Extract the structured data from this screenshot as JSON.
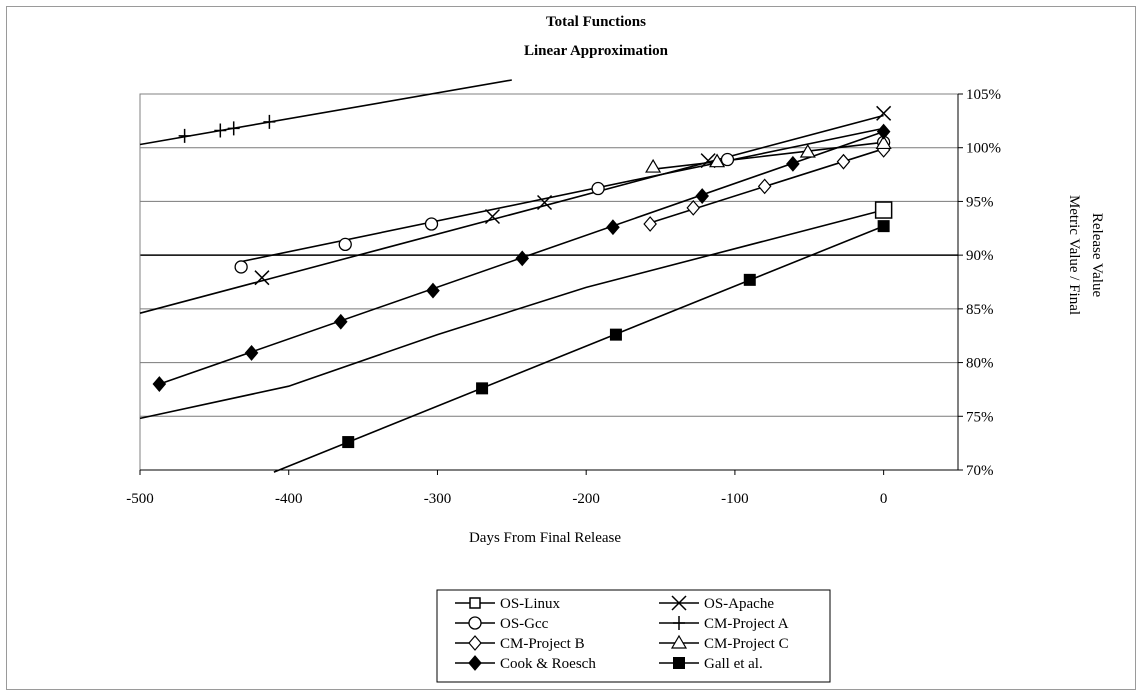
{
  "chart_data": {
    "type": "line",
    "title": "Total Functions",
    "subtitle": "Linear Approximation",
    "xlabel": "Days From Final Release",
    "ylabel_lines": [
      "Metric Value / Final",
      "Release Value"
    ],
    "xlim": [
      -500,
      50
    ],
    "ylim": [
      70,
      105
    ],
    "x_ticks": [
      -500,
      -400,
      -300,
      -200,
      -100,
      0
    ],
    "x_tick_labels": [
      "-500",
      "-400",
      "-300",
      "-200",
      "-100",
      "0"
    ],
    "y_ticks": [
      70,
      75,
      80,
      85,
      90,
      95,
      100,
      105
    ],
    "y_tick_labels": [
      "70%",
      "75%",
      "80%",
      "85%",
      "90%",
      "95%",
      "100%",
      "105%"
    ],
    "grid": "horizontal",
    "legend_position": "bottom-center",
    "series": [
      {
        "name": "OS-Linux",
        "marker": "square-open",
        "x": [
          0
        ],
        "y": [
          94.2
        ],
        "trend": [
          [
            -500,
            74.8
          ],
          [
            -400,
            77.8
          ],
          [
            -300,
            82.6
          ],
          [
            -200,
            87.0
          ],
          [
            -100,
            90.6
          ],
          [
            0,
            94.2
          ]
        ]
      },
      {
        "name": "OS-Apache",
        "marker": "x",
        "x": [
          -418,
          -263,
          -228,
          -118,
          0
        ],
        "y": [
          87.9,
          93.6,
          94.9,
          98.8,
          103.2
        ],
        "trend": [
          [
            -500,
            84.6
          ],
          [
            0,
            103.0
          ]
        ]
      },
      {
        "name": "OS-Gcc",
        "marker": "circle-open",
        "x": [
          -432,
          -362,
          -304,
          -192,
          -105,
          0
        ],
        "y": [
          88.9,
          91.0,
          92.9,
          96.2,
          98.9,
          100.5
        ],
        "trend": [
          [
            -432,
            89.4
          ],
          [
            0,
            101.8
          ]
        ]
      },
      {
        "name": "CM-Project A",
        "marker": "plus",
        "x": [
          -470,
          -446,
          -437,
          -413
        ],
        "y": [
          101.1,
          101.6,
          101.8,
          102.4
        ],
        "trend": [
          [
            -500,
            100.3
          ],
          [
            -250,
            106.3
          ]
        ]
      },
      {
        "name": "CM-Project B",
        "marker": "diamond-open",
        "x": [
          -157,
          -128,
          -80,
          -27,
          0
        ],
        "y": [
          92.9,
          94.4,
          96.4,
          98.7,
          99.8
        ],
        "trend": [
          [
            -157,
            93.0
          ],
          [
            0,
            99.9
          ]
        ]
      },
      {
        "name": "CM-Project C",
        "marker": "triangle-open",
        "x": [
          -155,
          -112,
          -51,
          0
        ],
        "y": [
          98.2,
          98.7,
          99.6,
          100.4
        ],
        "trend": [
          [
            -155,
            98.0
          ],
          [
            0,
            100.5
          ]
        ]
      },
      {
        "name": "Cook & Roesch",
        "marker": "diamond-filled",
        "x": [
          -487,
          -425,
          -365,
          -303,
          -243,
          -182,
          -122,
          -61,
          0
        ],
        "y": [
          78.0,
          80.9,
          83.8,
          86.7,
          89.7,
          92.6,
          95.5,
          98.5,
          101.5
        ],
        "trend": [
          [
            -487,
            78.0
          ],
          [
            0,
            101.5
          ]
        ]
      },
      {
        "name": "Gall et al.",
        "marker": "square-filled",
        "x": [
          -360,
          -270,
          -180,
          -90,
          0
        ],
        "y": [
          72.6,
          77.6,
          82.6,
          87.7,
          92.7
        ],
        "trend": [
          [
            -410,
            69.8
          ],
          [
            0,
            92.7
          ]
        ]
      }
    ]
  }
}
